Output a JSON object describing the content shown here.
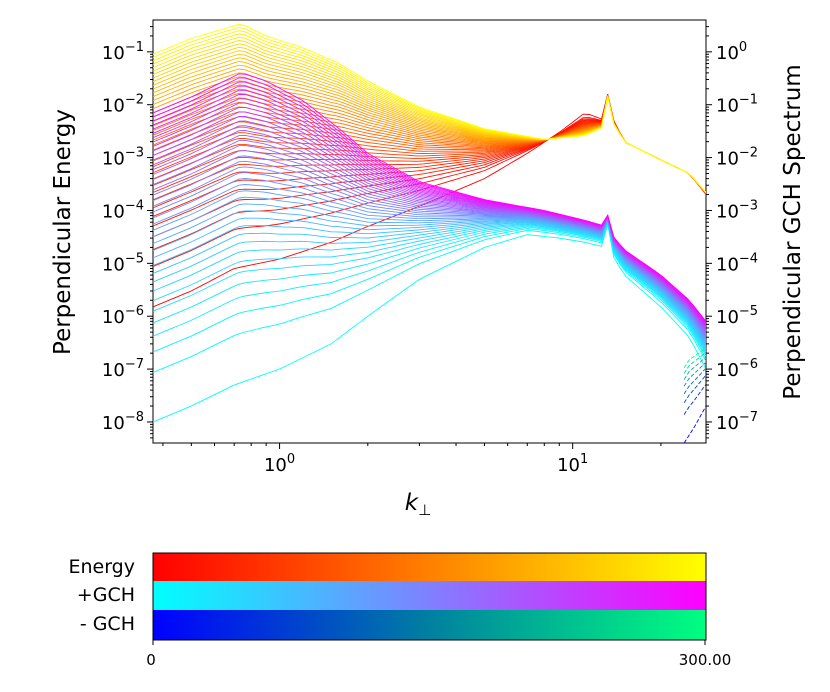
{
  "chart_data": {
    "type": "line",
    "title": "",
    "xlabel": "k",
    "xlabel_sub": "⊥",
    "ylabel_left": "Perpendicular Energy",
    "ylabel_right": "Perpendicular GCH Spectrum",
    "x_scale": "log",
    "y_scale": "log",
    "xlim": [
      0.37,
      28.5
    ],
    "ylim_left": [
      4e-09,
      0.4
    ],
    "ylim_right": [
      4e-08,
      4.0
    ],
    "x_ticks": [
      {
        "value": 1,
        "base": "10",
        "exp": "0"
      },
      {
        "value": 10,
        "base": "10",
        "exp": "1"
      }
    ],
    "y_ticks_left": [
      {
        "value": 0.1,
        "base": "10",
        "exp": "−1"
      },
      {
        "value": 0.01,
        "base": "10",
        "exp": "−2"
      },
      {
        "value": 0.001,
        "base": "10",
        "exp": "−3"
      },
      {
        "value": 0.0001,
        "base": "10",
        "exp": "−4"
      },
      {
        "value": 1e-05,
        "base": "10",
        "exp": "−5"
      },
      {
        "value": 1e-06,
        "base": "10",
        "exp": "−6"
      },
      {
        "value": 1e-07,
        "base": "10",
        "exp": "−7"
      },
      {
        "value": 1e-08,
        "base": "10",
        "exp": "−8"
      }
    ],
    "y_ticks_right": [
      {
        "value": 1,
        "base": "10",
        "exp": "0"
      },
      {
        "value": 0.1,
        "base": "10",
        "exp": "−1"
      },
      {
        "value": 0.01,
        "base": "10",
        "exp": "−2"
      },
      {
        "value": 0.001,
        "base": "10",
        "exp": "−3"
      },
      {
        "value": 0.0001,
        "base": "10",
        "exp": "−4"
      },
      {
        "value": 1e-05,
        "base": "10",
        "exp": "−5"
      },
      {
        "value": 1e-06,
        "base": "10",
        "exp": "−6"
      },
      {
        "value": 1e-07,
        "base": "10",
        "exp": "−7"
      }
    ],
    "grid": false,
    "time_range": [
      0,
      300
    ],
    "families": [
      {
        "label": "Energy",
        "axis": "left",
        "color_start": "#ff0000",
        "color_end": "#ffff00",
        "early_k": [
          0.37,
          0.5,
          0.7,
          1.0,
          1.5,
          2.0,
          3.0,
          5.0,
          7.0,
          9.0,
          11.0,
          13.0,
          13.3,
          13.6,
          15.0,
          20.0,
          25.0,
          28.5
        ],
        "early_y": [
          1.5e-06,
          3e-06,
          8e-06,
          1.2e-05,
          2.5e-05,
          5e-05,
          0.00012,
          0.0004,
          0.0012,
          0.003,
          0.007,
          0.005,
          0.04,
          0.006,
          0.002,
          0.0009,
          0.0005,
          0.0002
        ],
        "late_k": [
          0.37,
          0.5,
          0.74,
          0.9,
          1.2,
          1.6,
          2.0,
          3.0,
          5.0,
          8.0,
          11.0,
          13.0,
          13.3,
          13.6,
          15.0,
          20.0,
          25.0,
          28.5
        ],
        "late_y": [
          0.09,
          0.18,
          0.34,
          0.2,
          0.12,
          0.06,
          0.028,
          0.009,
          0.0035,
          0.0022,
          0.0026,
          0.004,
          0.04,
          0.005,
          0.002,
          0.0009,
          0.0005,
          0.00022
        ]
      },
      {
        "label": "+GCH",
        "axis": "right",
        "color_start": "#00ffff",
        "color_end": "#ff00ff",
        "early_k": [
          0.37,
          0.5,
          0.7,
          1.0,
          1.5,
          2.0,
          3.0,
          5.0,
          7.0,
          9.0,
          11.0,
          13.0,
          13.3,
          13.6,
          15.0,
          20.0,
          25.0,
          28.5
        ],
        "early_y": [
          1e-07,
          2e-07,
          5e-07,
          1e-06,
          3e-06,
          1e-05,
          5e-05,
          0.0002,
          0.00035,
          0.0003,
          0.00025,
          0.0002,
          0.0012,
          0.00015,
          6e-05,
          1.5e-05,
          4e-06,
          1e-06
        ],
        "late_k": [
          0.37,
          0.5,
          0.74,
          0.9,
          1.2,
          1.6,
          2.0,
          3.0,
          5.0,
          8.0,
          11.0,
          13.0,
          13.3,
          13.6,
          15.0,
          20.0,
          25.0,
          28.5
        ],
        "late_y": [
          0.07,
          0.14,
          0.4,
          0.28,
          0.12,
          0.035,
          0.012,
          0.0035,
          0.0016,
          0.001,
          0.00065,
          0.0005,
          0.0012,
          0.00035,
          0.00018,
          6e-05,
          2e-05,
          8e-06
        ]
      },
      {
        "label": "- GCH",
        "axis": "right",
        "color_start": "#0000ff",
        "color_end": "#00ff80",
        "early_k": [
          24.0,
          26.0,
          28.5
        ],
        "early_y": [
          4e-08,
          8e-08,
          2e-07
        ],
        "late_k": [
          22.0,
          25.0,
          28.5
        ],
        "late_y": [
          5e-07,
          1.5e-06,
          2.5e-06
        ]
      }
    ],
    "colorbar": {
      "rows": [
        {
          "label": "Energy",
          "colors": [
            "#ff0000",
            "#ff8000",
            "#ffff00"
          ]
        },
        {
          "label": "+GCH",
          "colors": [
            "#00ffff",
            "#8080ff",
            "#ff00ff"
          ]
        },
        {
          "label": "- GCH",
          "colors": [
            "#0000ff",
            "#0080a0",
            "#00ff80"
          ]
        }
      ],
      "tick_min": "0",
      "tick_max": "300.00"
    }
  }
}
